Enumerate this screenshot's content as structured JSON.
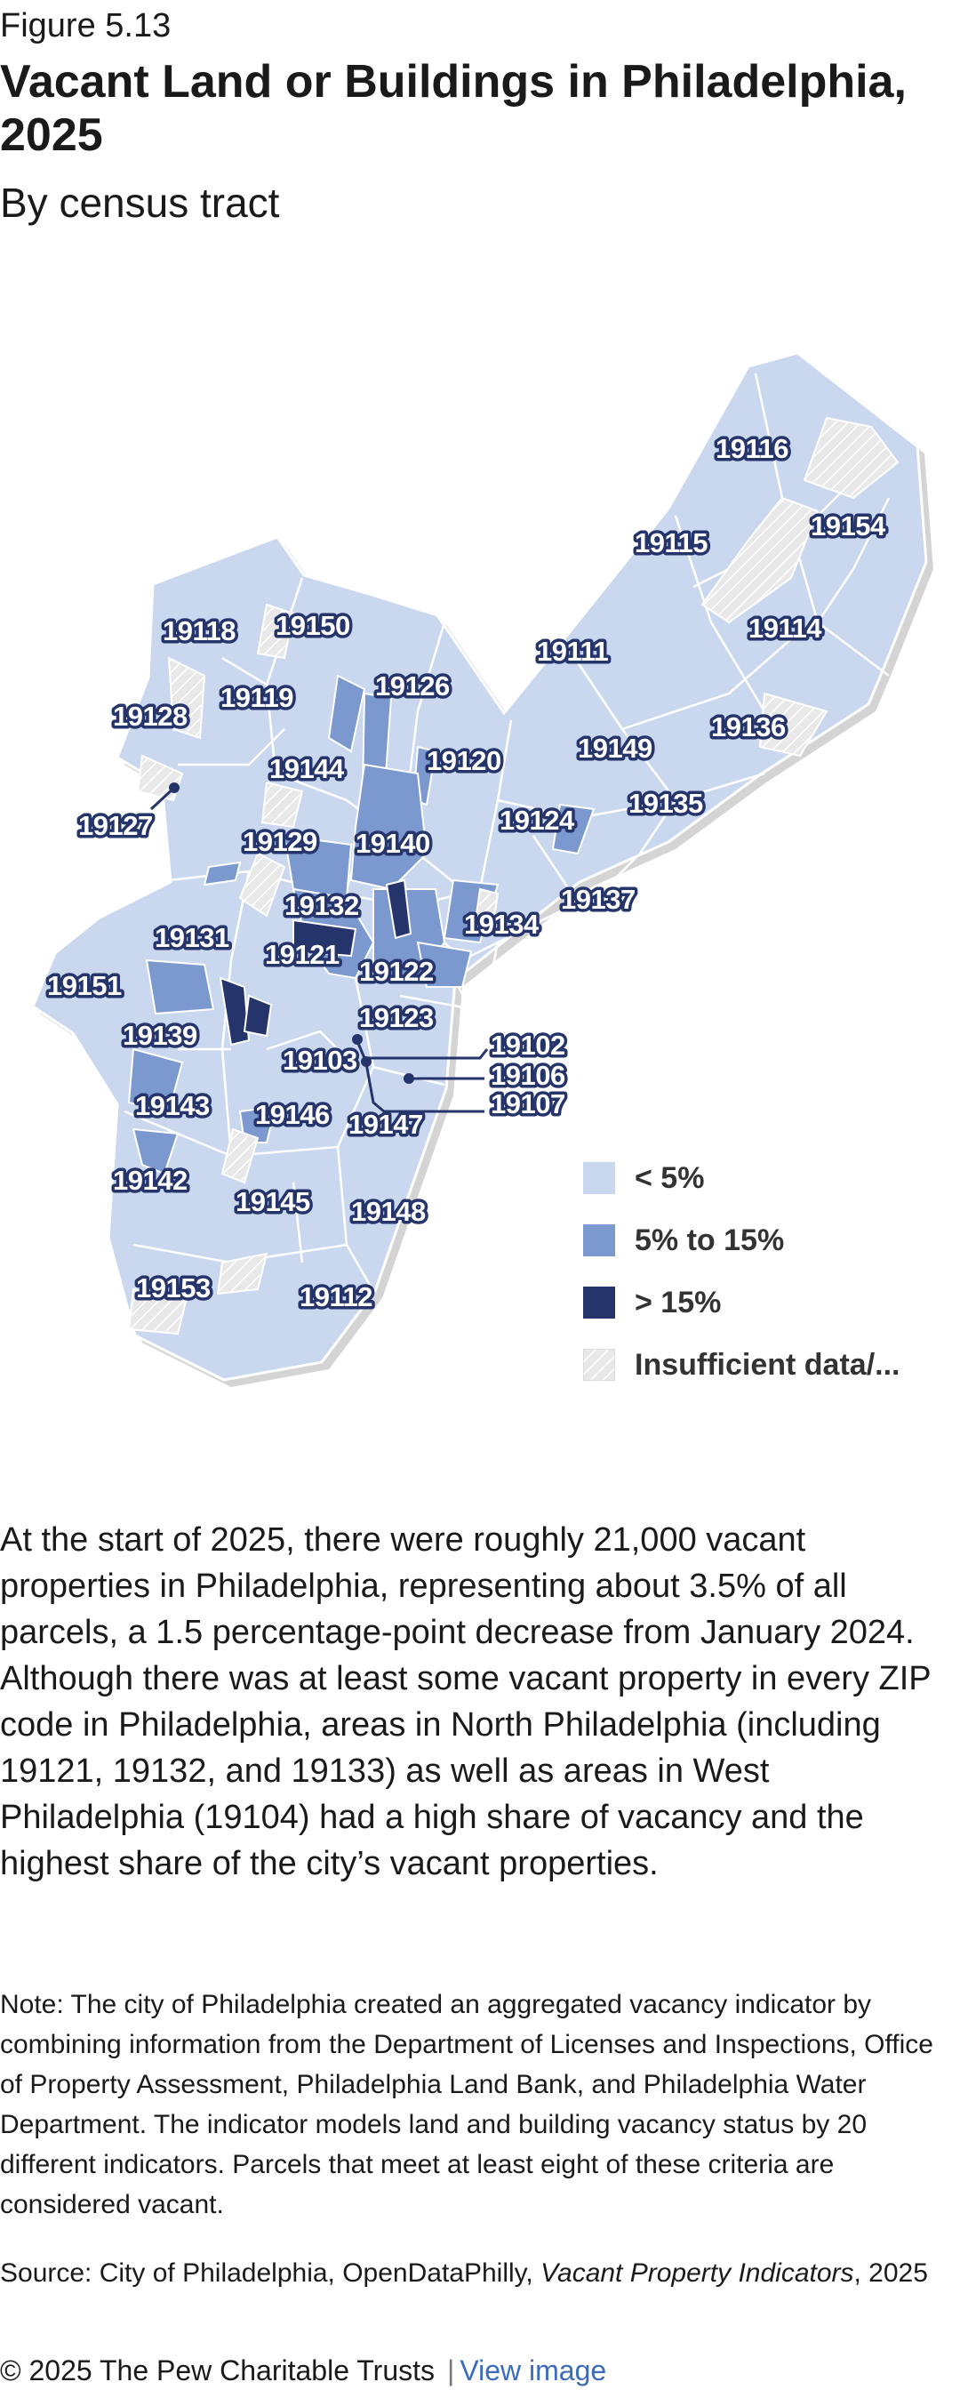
{
  "header": {
    "figure_label": "Figure 5.13",
    "title": "Vacant Land or Buildings in Philadelphia, 2025",
    "subtitle": "By census tract"
  },
  "map": {
    "colors": {
      "low": "#c9d8ef",
      "mid": "#7b99cf",
      "high": "#25346a",
      "insufficient": "#e6e6e6",
      "border": "#ffffff",
      "shadow": "#d4d4d4"
    },
    "zip_labels": [
      "19116",
      "19154",
      "19115",
      "19114",
      "19118",
      "19150",
      "19111",
      "19126",
      "19119",
      "19128",
      "19136",
      "19149",
      "19144",
      "19120",
      "19135",
      "19127",
      "19124",
      "19129",
      "19140",
      "19137",
      "19132",
      "19134",
      "19131",
      "19121",
      "19122",
      "19151",
      "19123",
      "19139",
      "19102",
      "19103",
      "19106",
      "19107",
      "19143",
      "19146",
      "19147",
      "19142",
      "19145",
      "19148",
      "19153",
      "19112"
    ]
  },
  "legend": [
    {
      "label": "< 5%",
      "key": "low"
    },
    {
      "label": "5% to 15%",
      "key": "mid"
    },
    {
      "label": "> 15%",
      "key": "high"
    },
    {
      "label": "Insufficient data/...",
      "key": "insufficient"
    }
  ],
  "body": {
    "paragraph": "At the start of 2025, there were roughly 21,000 vacant properties in Philadelphia, representing about 3.5% of all parcels, a 1.5 percentage-point decrease from January 2024. Although there was at least some vacant property in every ZIP code in Philadelphia, areas in North Philadelphia (including 19121, 19132, and 19133) as well as areas in West Philadelphia (19104) had a high share of vacancy and the highest share of the city’s vacant properties.",
    "note": "Note: The city of Philadelphia created an aggregated vacancy indicator by combining information from the Department of Licenses and Inspections, Office of Property Assessment, Philadelphia Land Bank, and Philadelphia Water Department. The indicator models land and building vacancy status by 20 different indicators. Parcels that meet at least eight of these criteria are considered vacant.",
    "source_prefix": "Source: City of Philadelphia, OpenDataPhilly, ",
    "source_italic": "Vacant Property Indicators",
    "source_suffix": ", 2025"
  },
  "footer": {
    "copyright": "© 2025 The Pew Charitable Trusts",
    "separator": "|",
    "link_label": "View image"
  }
}
